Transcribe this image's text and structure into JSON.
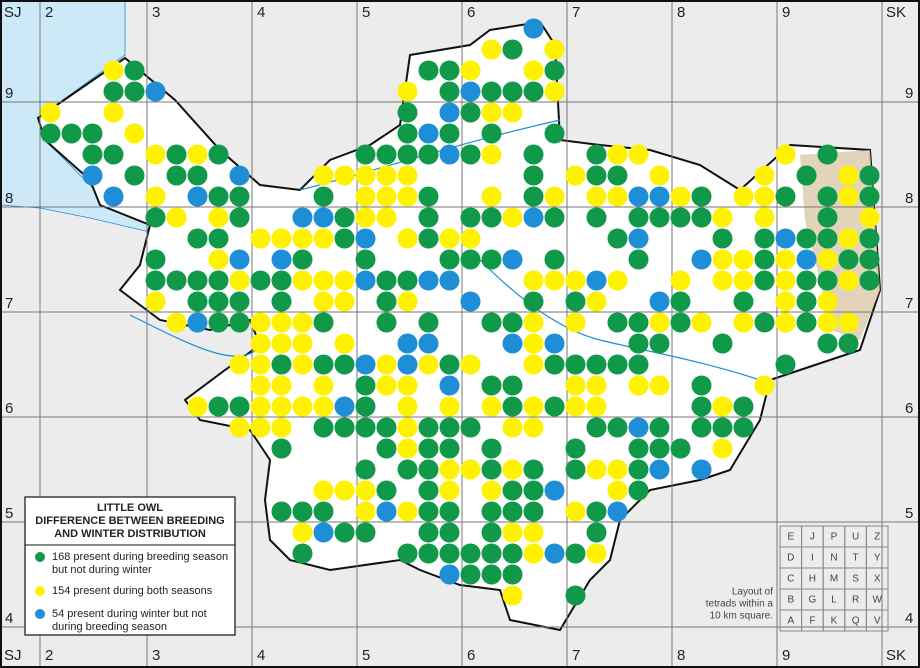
{
  "map": {
    "top_labels": [
      "SJ",
      "2",
      "3",
      "4",
      "5",
      "6",
      "7",
      "8",
      "9",
      "SK"
    ],
    "bottom_labels": [
      "SJ",
      "2",
      "3",
      "4",
      "5",
      "6",
      "7",
      "8",
      "9",
      "SK"
    ],
    "left_labels": [
      "9",
      "8",
      "7",
      "6",
      "5",
      "4"
    ],
    "right_labels": [
      "9",
      "8",
      "7",
      "6",
      "5",
      "4"
    ]
  },
  "legend": {
    "title": [
      "LITTLE OWL",
      "DIFFERENCE BETWEEN BREEDING",
      "AND WINTER DISTRIBUTION"
    ],
    "entries": [
      {
        "color": "#11994a",
        "lines": [
          "168 present during breeding season",
          "but not during winter"
        ]
      },
      {
        "color": "#fff200",
        "lines": [
          "154 present during both seasons"
        ]
      },
      {
        "color": "#1e8fd6",
        "lines": [
          "54 present during winter but not",
          "during breeding season"
        ]
      }
    ]
  },
  "tetrad_layout": {
    "rows": [
      [
        "E",
        "J",
        "P",
        "U",
        "Z"
      ],
      [
        "D",
        "I",
        "N",
        "T",
        "Y"
      ],
      [
        "C",
        "H",
        "M",
        "S",
        "X"
      ],
      [
        "B",
        "G",
        "L",
        "R",
        "W"
      ],
      [
        "A",
        "F",
        "K",
        "Q",
        "V"
      ]
    ],
    "caption": [
      "Layout of",
      "tetrads within a",
      "10 km square."
    ]
  }
}
